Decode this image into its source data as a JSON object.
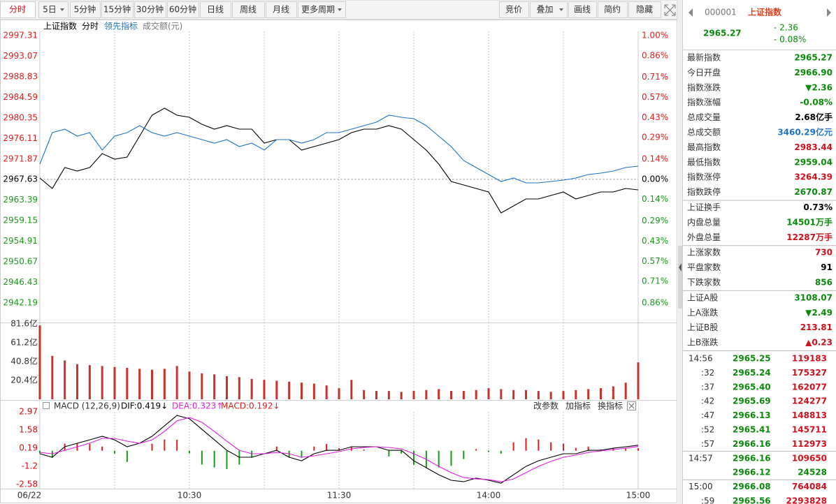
{
  "toolbar": {
    "left": [
      "分时",
      "5日",
      "5分钟",
      "15分钟",
      "30分钟",
      "60分钟",
      "日线",
      "周线",
      "月线",
      "更多周期"
    ],
    "right": [
      "竞价",
      "叠加",
      "画线",
      "简约",
      "隐藏"
    ]
  },
  "chart_data": [
    {
      "type": "line",
      "title": "上证指数",
      "extra_label": "成交额(元)",
      "x": [
        0,
        5,
        10,
        15,
        20,
        25,
        30,
        35,
        40,
        45,
        50,
        55,
        60,
        65,
        70,
        75,
        80,
        85,
        90,
        95,
        100,
        105,
        110,
        115,
        120,
        125,
        130,
        135,
        140,
        145,
        150,
        155,
        160,
        165,
        170,
        175,
        180,
        185,
        190,
        195,
        200,
        205,
        210,
        215,
        220,
        225,
        230,
        235,
        240
      ],
      "xlim": [
        0,
        240
      ],
      "series": [
        {
          "name": "分时",
          "color": "#000000",
          "values": [
            2967.95,
            2965.79,
            2970.11,
            2969.39,
            2970.11,
            2972.99,
            2971.84,
            2972.27,
            2976.59,
            2980.9,
            2982.34,
            2980.9,
            2980.47,
            2979.03,
            2978.02,
            2978.74,
            2978.02,
            2978.02,
            2975.15,
            2975.87,
            2975.87,
            2973.71,
            2974.43,
            2975.15,
            2975.87,
            2977.31,
            2978.02,
            2978.02,
            2978.74,
            2978.02,
            2975.87,
            2973.71,
            2970.83,
            2967.23,
            2966.51,
            2965.79,
            2965.07,
            2960.75,
            2962.19,
            2963.63,
            2963.63,
            2964.35,
            2965.07,
            2963.63,
            2964.35,
            2965.07,
            2965.07,
            2965.79,
            2965.5
          ]
        },
        {
          "name": "领先指标",
          "color": "#1e74c8",
          "values": [
            2970.83,
            2977.31,
            2978.02,
            2976.59,
            2977.31,
            2973.71,
            2976.59,
            2977.31,
            2978.74,
            2977.31,
            2976.59,
            2977.31,
            2976.59,
            2975.87,
            2975.15,
            2975.87,
            2974.43,
            2975.15,
            2973.71,
            2975.87,
            2975.87,
            2975.15,
            2975.87,
            2977.31,
            2977.31,
            2978.02,
            2978.74,
            2979.46,
            2980.9,
            2980.47,
            2980.18,
            2978.74,
            2976.59,
            2974.43,
            2971.55,
            2970.11,
            2968.67,
            2967.23,
            2967.95,
            2966.94,
            2966.94,
            2967.23,
            2967.52,
            2967.95,
            2968.67,
            2968.96,
            2969.39,
            2970.11,
            2970.4
          ]
        }
      ],
      "ylim": [
        2942.19,
        2997.31
      ],
      "yticks": [
        2997.31,
        2993.07,
        2988.83,
        2984.59,
        2980.35,
        2976.11,
        2971.87,
        2967.63,
        2963.39,
        2959.15,
        2954.91,
        2950.67,
        2946.43,
        2942.19
      ],
      "y2lim": [
        -0.86,
        1.0
      ],
      "y2ticks": [
        {
          "value": 1.0,
          "label": "1.00%"
        },
        {
          "value": 0.86,
          "label": "0.86%"
        },
        {
          "value": 0.71,
          "label": "0.71%"
        },
        {
          "value": 0.57,
          "label": "0.57%"
        },
        {
          "value": 0.43,
          "label": "0.43%"
        },
        {
          "value": 0.29,
          "label": "0.29%"
        },
        {
          "value": 0.14,
          "label": "0.14%"
        },
        {
          "value": 0,
          "label": "0.00%"
        },
        {
          "value": -0.14,
          "label": "0.14%"
        },
        {
          "value": -0.29,
          "label": "0.29%"
        },
        {
          "value": -0.43,
          "label": "0.43%"
        },
        {
          "value": -0.57,
          "label": "0.57%"
        },
        {
          "value": -0.71,
          "label": "0.71%"
        },
        {
          "value": -0.86,
          "label": "0.86%"
        }
      ],
      "up_color": "#e0201e",
      "down_color": "#1a9a1a"
    },
    {
      "type": "bar",
      "x": [
        0,
        5,
        10,
        15,
        20,
        25,
        30,
        35,
        40,
        45,
        50,
        55,
        60,
        65,
        70,
        75,
        80,
        85,
        90,
        95,
        100,
        105,
        110,
        115,
        120,
        125,
        130,
        135,
        140,
        145,
        150,
        155,
        160,
        165,
        170,
        175,
        180,
        185,
        190,
        195,
        200,
        205,
        210,
        215,
        220,
        225,
        230,
        235,
        240
      ],
      "xlim": [
        0,
        240
      ],
      "values": [
        80,
        47,
        42,
        38,
        37,
        36,
        35,
        34,
        33,
        32,
        33,
        36,
        30,
        28,
        27,
        25,
        24,
        22,
        21,
        20,
        19,
        18,
        17,
        15,
        12,
        21,
        10,
        9,
        9,
        8,
        9,
        10,
        11,
        9,
        9,
        10,
        12,
        11,
        10,
        10,
        9,
        8,
        9,
        10,
        11,
        12,
        14,
        18,
        40
      ],
      "color": "#c8322e",
      "ylim": [
        0,
        81.6
      ],
      "yticks": [
        {
          "value": 81.6,
          "label": "81.6亿"
        },
        {
          "value": 61.2,
          "label": "61.2亿"
        },
        {
          "value": 40.8,
          "label": "40.8亿"
        },
        {
          "value": 20.4,
          "label": "20.4亿"
        }
      ]
    },
    {
      "type": "macd",
      "title": "MACD (12,26,9)",
      "buttons": [
        "改参数",
        "加指标",
        "换指标"
      ],
      "x": [
        0,
        5,
        10,
        15,
        20,
        25,
        30,
        35,
        40,
        45,
        50,
        55,
        60,
        65,
        70,
        75,
        80,
        85,
        90,
        95,
        100,
        105,
        110,
        115,
        120,
        125,
        130,
        135,
        140,
        145,
        150,
        155,
        160,
        165,
        170,
        175,
        180,
        185,
        190,
        195,
        200,
        205,
        210,
        215,
        220,
        225,
        230,
        235,
        240
      ],
      "xlim": [
        0,
        240
      ],
      "xticks": [
        {
          "value": 0,
          "label": "06/22"
        },
        {
          "value": 60,
          "label": "10:30"
        },
        {
          "value": 120,
          "label": "11:30"
        },
        {
          "value": 180,
          "label": "14:00"
        },
        {
          "value": 240,
          "label": "15:00"
        }
      ],
      "series": [
        {
          "name": "DIF",
          "label": "DIF:0.419↓",
          "color": "#000000",
          "values": [
            -0.23,
            -0.5,
            0.3,
            0.57,
            0.83,
            1.1,
            0.83,
            0.3,
            0.57,
            1.1,
            1.9,
            2.7,
            2.44,
            1.64,
            0.83,
            0.03,
            -0.5,
            -0.5,
            -0.23,
            0.03,
            -0.5,
            -0.77,
            -0.23,
            0.03,
            0.03,
            0.3,
            0.3,
            0.3,
            0.03,
            0.03,
            -0.77,
            -1.3,
            -1.84,
            -2.26,
            -2.37,
            -2.1,
            -2.26,
            -2.48,
            -1.84,
            -1.2,
            -0.77,
            -0.5,
            -0.23,
            -0.23,
            0.03,
            0.03,
            0.19,
            0.3,
            0.419
          ]
        },
        {
          "name": "DEA",
          "label": "DEA:0.323↑",
          "color": "#e020e0",
          "values": [
            -0.13,
            -0.23,
            0.03,
            0.3,
            0.57,
            0.94,
            0.94,
            0.73,
            0.57,
            0.83,
            1.47,
            2.28,
            2.54,
            2.17,
            1.47,
            0.73,
            0.03,
            -0.23,
            -0.23,
            -0.13,
            -0.23,
            -0.5,
            -0.39,
            -0.23,
            -0.07,
            0.14,
            0.25,
            0.3,
            0.25,
            0.14,
            -0.23,
            -0.66,
            -1.2,
            -1.68,
            -2.05,
            -2.16,
            -2.21,
            -2.37,
            -2.16,
            -1.68,
            -1.2,
            -0.82,
            -0.5,
            -0.34,
            -0.13,
            -0.02,
            0.09,
            0.19,
            0.323
          ]
        },
        {
          "name": "MACD",
          "label": "MACD:0.192↓",
          "type": "bar",
          "color": "#e0201e",
          "down_color": "#1a9a1a",
          "values": [
            -0.2,
            -0.54,
            0.54,
            0.54,
            0.52,
            0.32,
            -0.22,
            -0.86,
            0,
            0.54,
            0.86,
            0.84,
            -0.2,
            -1.06,
            -1.28,
            -1.4,
            -1.06,
            -0.54,
            0,
            0.32,
            -0.54,
            -0.54,
            0.32,
            0.52,
            0.2,
            0.32,
            0.1,
            0,
            -0.44,
            -0.22,
            -1.08,
            -1.28,
            -1.28,
            -1.16,
            -0.64,
            0.12,
            -0.1,
            -0.22,
            0.64,
            0.96,
            0.86,
            0.64,
            0.54,
            0.22,
            0.32,
            0.1,
            0.2,
            0.22,
            0.192
          ]
        }
      ],
      "ylim": [
        -2.58,
        2.97
      ],
      "yticks": [
        2.97,
        1.58,
        0.19,
        -1.2,
        -2.58
      ]
    }
  ],
  "quote": {
    "code": "000001",
    "name": "上证指数",
    "price": "2965.27",
    "change": "- 2.36",
    "change_pct": "- 0.08%",
    "groups": [
      [
        {
          "label": "最新指数",
          "value": "2965.27",
          "color": "#0a8a0a"
        },
        {
          "label": "今日开盘",
          "value": "2966.90",
          "color": "#0a8a0a"
        },
        {
          "label": "指数涨跌",
          "value": "▼2.36",
          "color": "#0a8a0a"
        },
        {
          "label": "指数涨幅",
          "value": "-0.08%",
          "color": "#0a8a0a"
        },
        {
          "label": "总成交量",
          "value": "2.68亿手",
          "color": "#000000"
        },
        {
          "label": "总成交额",
          "value": "3460.29亿元",
          "color": "#1e74c8"
        },
        {
          "label": "最高指数",
          "value": "2983.44",
          "color": "#d0101a"
        },
        {
          "label": "最低指数",
          "value": "2959.04",
          "color": "#0a8a0a"
        },
        {
          "label": "指数涨停",
          "value": "3264.39",
          "color": "#d0101a"
        },
        {
          "label": "指数跌停",
          "value": "2670.87",
          "color": "#0a8a0a"
        }
      ],
      [
        {
          "label": "上证换手",
          "value": "0.73%",
          "color": "#000000"
        },
        {
          "label": "内盘总量",
          "value": "14501万手",
          "color": "#0a8a0a"
        },
        {
          "label": "外盘总量",
          "value": "12287万手",
          "color": "#d0101a"
        }
      ],
      [
        {
          "label": "上涨家数",
          "value": "730",
          "color": "#d0101a"
        },
        {
          "label": "平盘家数",
          "value": "91",
          "color": "#000000"
        },
        {
          "label": "下跌家数",
          "value": "856",
          "color": "#0a8a0a"
        }
      ],
      [
        {
          "label": "上证A股",
          "value": "3108.07",
          "color": "#0a8a0a"
        },
        {
          "label": "上A涨跌",
          "value": "▼2.49",
          "color": "#0a8a0a"
        },
        {
          "label": "上证B股",
          "value": "213.81",
          "color": "#d0101a"
        },
        {
          "label": "上B涨跌",
          "value": "▲0.23",
          "color": "#d0101a"
        }
      ]
    ],
    "ticks": [
      {
        "time": "14:56",
        "price": "2965.25",
        "volume": "119183",
        "color": "#d0101a"
      },
      {
        "time": ":32",
        "price": "2965.24",
        "volume": "175327",
        "color": "#d0101a"
      },
      {
        "time": ":37",
        "price": "2965.40",
        "volume": "162077",
        "color": "#d0101a"
      },
      {
        "time": ":42",
        "price": "2965.69",
        "volume": "124277",
        "color": "#d0101a"
      },
      {
        "time": ":47",
        "price": "2966.13",
        "volume": "148813",
        "color": "#d0101a"
      },
      {
        "time": ":52",
        "price": "2965.41",
        "volume": "145711",
        "color": "#d0101a"
      },
      {
        "time": ":57",
        "price": "2966.16",
        "volume": "112973",
        "color": "#d0101a"
      },
      {
        "time": "14:57",
        "price": "2966.16",
        "volume": "109650",
        "color": "#d0101a"
      },
      {
        "price": "2966.12",
        "volume": "24528",
        "color": "#0a8a0a"
      },
      {
        "time": "15:00",
        "price": "2966.08",
        "volume": "764084",
        "color": "#d0101a"
      },
      {
        "time": ":59",
        "price": "2965.56",
        "volume": "2293828",
        "color": "#d0101a"
      }
    ]
  }
}
